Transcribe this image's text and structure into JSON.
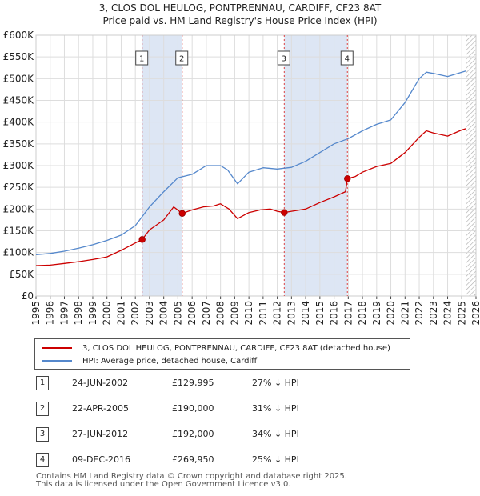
{
  "header": {
    "title_line1": "3, CLOS DOL HEULOG, PONTPRENNAU, CARDIFF, CF23 8AT",
    "title_line2": "Price paid vs. HM Land Registry's House Price Index (HPI)"
  },
  "chart_data": {
    "type": "line",
    "xlim": [
      1995,
      2026
    ],
    "ylim": [
      0,
      600000
    ],
    "y_ticks": [
      {
        "value": 0,
        "label": "£0"
      },
      {
        "value": 50000,
        "label": "£50K"
      },
      {
        "value": 100000,
        "label": "£100K"
      },
      {
        "value": 150000,
        "label": "£150K"
      },
      {
        "value": 200000,
        "label": "£200K"
      },
      {
        "value": 250000,
        "label": "£250K"
      },
      {
        "value": 300000,
        "label": "£300K"
      },
      {
        "value": 350000,
        "label": "£350K"
      },
      {
        "value": 400000,
        "label": "£400K"
      },
      {
        "value": 450000,
        "label": "£450K"
      },
      {
        "value": 500000,
        "label": "£500K"
      },
      {
        "value": 550000,
        "label": "£550K"
      },
      {
        "value": 600000,
        "label": "£600K"
      }
    ],
    "x_ticks": [
      "1995",
      "1996",
      "1997",
      "1998",
      "1999",
      "2000",
      "2001",
      "2002",
      "2003",
      "2004",
      "2005",
      "2006",
      "2007",
      "2008",
      "2009",
      "2010",
      "2011",
      "2012",
      "2013",
      "2014",
      "2015",
      "2016",
      "2017",
      "2018",
      "2019",
      "2020",
      "2021",
      "2022",
      "2023",
      "2024",
      "2025",
      "2026"
    ],
    "series": [
      {
        "name": "3, CLOS DOL HEULOG, PONTPRENNAU, CARDIFF, CF23 8AT (detached house)",
        "color": "#cc0000",
        "points": [
          [
            1995.0,
            70000
          ],
          [
            1996.0,
            71000
          ],
          [
            1997.0,
            75000
          ],
          [
            1998.0,
            79000
          ],
          [
            1999.0,
            84000
          ],
          [
            2000.0,
            90000
          ],
          [
            2001.0,
            105000
          ],
          [
            2002.0,
            122000
          ],
          [
            2002.48,
            129995
          ],
          [
            2003.0,
            152000
          ],
          [
            2004.0,
            175000
          ],
          [
            2004.7,
            205000
          ],
          [
            2005.3,
            190000
          ],
          [
            2006.0,
            198000
          ],
          [
            2006.8,
            205000
          ],
          [
            2007.5,
            207000
          ],
          [
            2008.0,
            212000
          ],
          [
            2008.6,
            200000
          ],
          [
            2009.2,
            178000
          ],
          [
            2010.0,
            192000
          ],
          [
            2010.8,
            198000
          ],
          [
            2011.5,
            200000
          ],
          [
            2012.0,
            195000
          ],
          [
            2012.49,
            192000
          ],
          [
            2013.0,
            195000
          ],
          [
            2014.0,
            200000
          ],
          [
            2015.0,
            215000
          ],
          [
            2016.0,
            228000
          ],
          [
            2016.8,
            240000
          ],
          [
            2016.94,
            269950
          ],
          [
            2017.5,
            275000
          ],
          [
            2018.0,
            285000
          ],
          [
            2019.0,
            298000
          ],
          [
            2020.0,
            305000
          ],
          [
            2021.0,
            330000
          ],
          [
            2022.0,
            365000
          ],
          [
            2022.5,
            380000
          ],
          [
            2023.0,
            375000
          ],
          [
            2024.0,
            368000
          ],
          [
            2025.0,
            382000
          ],
          [
            2025.3,
            385000
          ]
        ]
      },
      {
        "name": "HPI: Average price, detached house, Cardiff",
        "color": "#5588cc",
        "points": [
          [
            1995.0,
            95000
          ],
          [
            1996.0,
            98000
          ],
          [
            1997.0,
            103000
          ],
          [
            1998.0,
            110000
          ],
          [
            1999.0,
            118000
          ],
          [
            2000.0,
            128000
          ],
          [
            2001.0,
            140000
          ],
          [
            2002.0,
            162000
          ],
          [
            2003.0,
            205000
          ],
          [
            2004.0,
            240000
          ],
          [
            2005.0,
            272000
          ],
          [
            2006.0,
            280000
          ],
          [
            2007.0,
            300000
          ],
          [
            2008.0,
            300000
          ],
          [
            2008.5,
            290000
          ],
          [
            2009.2,
            258000
          ],
          [
            2010.0,
            285000
          ],
          [
            2011.0,
            295000
          ],
          [
            2012.0,
            292000
          ],
          [
            2013.0,
            296000
          ],
          [
            2014.0,
            310000
          ],
          [
            2015.0,
            330000
          ],
          [
            2016.0,
            350000
          ],
          [
            2017.0,
            362000
          ],
          [
            2018.0,
            380000
          ],
          [
            2019.0,
            395000
          ],
          [
            2020.0,
            405000
          ],
          [
            2021.0,
            445000
          ],
          [
            2022.0,
            500000
          ],
          [
            2022.5,
            515000
          ],
          [
            2023.0,
            512000
          ],
          [
            2024.0,
            505000
          ],
          [
            2025.0,
            515000
          ],
          [
            2025.3,
            518000
          ]
        ]
      }
    ],
    "sales": [
      {
        "num": "1",
        "date": "24-JUN-2002",
        "x": 2002.48,
        "price": 129995,
        "price_label": "£129,995",
        "hpi_label": "27% ↓ HPI"
      },
      {
        "num": "2",
        "date": "22-APR-2005",
        "x": 2005.3,
        "price": 190000,
        "price_label": "£190,000",
        "hpi_label": "31% ↓ HPI"
      },
      {
        "num": "3",
        "date": "27-JUN-2012",
        "x": 2012.49,
        "price": 192000,
        "price_label": "£192,000",
        "hpi_label": "34% ↓ HPI"
      },
      {
        "num": "4",
        "date": "09-DEC-2016",
        "x": 2016.94,
        "price": 269950,
        "price_label": "£269,950",
        "hpi_label": "25% ↓ HPI"
      }
    ],
    "shaded_spans": [
      [
        2002.48,
        2005.3
      ],
      [
        2012.49,
        2016.94
      ]
    ],
    "hatched_span": [
      2025.3,
      2026.0
    ]
  },
  "legend": {
    "property_label": "3, CLOS DOL HEULOG, PONTPRENNAU, CARDIFF, CF23 8AT (detached house)",
    "hpi_label": "HPI: Average price, detached house, Cardiff",
    "property_color": "#cc0000",
    "hpi_color": "#5588cc"
  },
  "footer": {
    "line1": "Contains HM Land Registry data © Crown copyright and database right 2025.",
    "line2": "This data is licensed under the Open Government Licence v3.0."
  }
}
